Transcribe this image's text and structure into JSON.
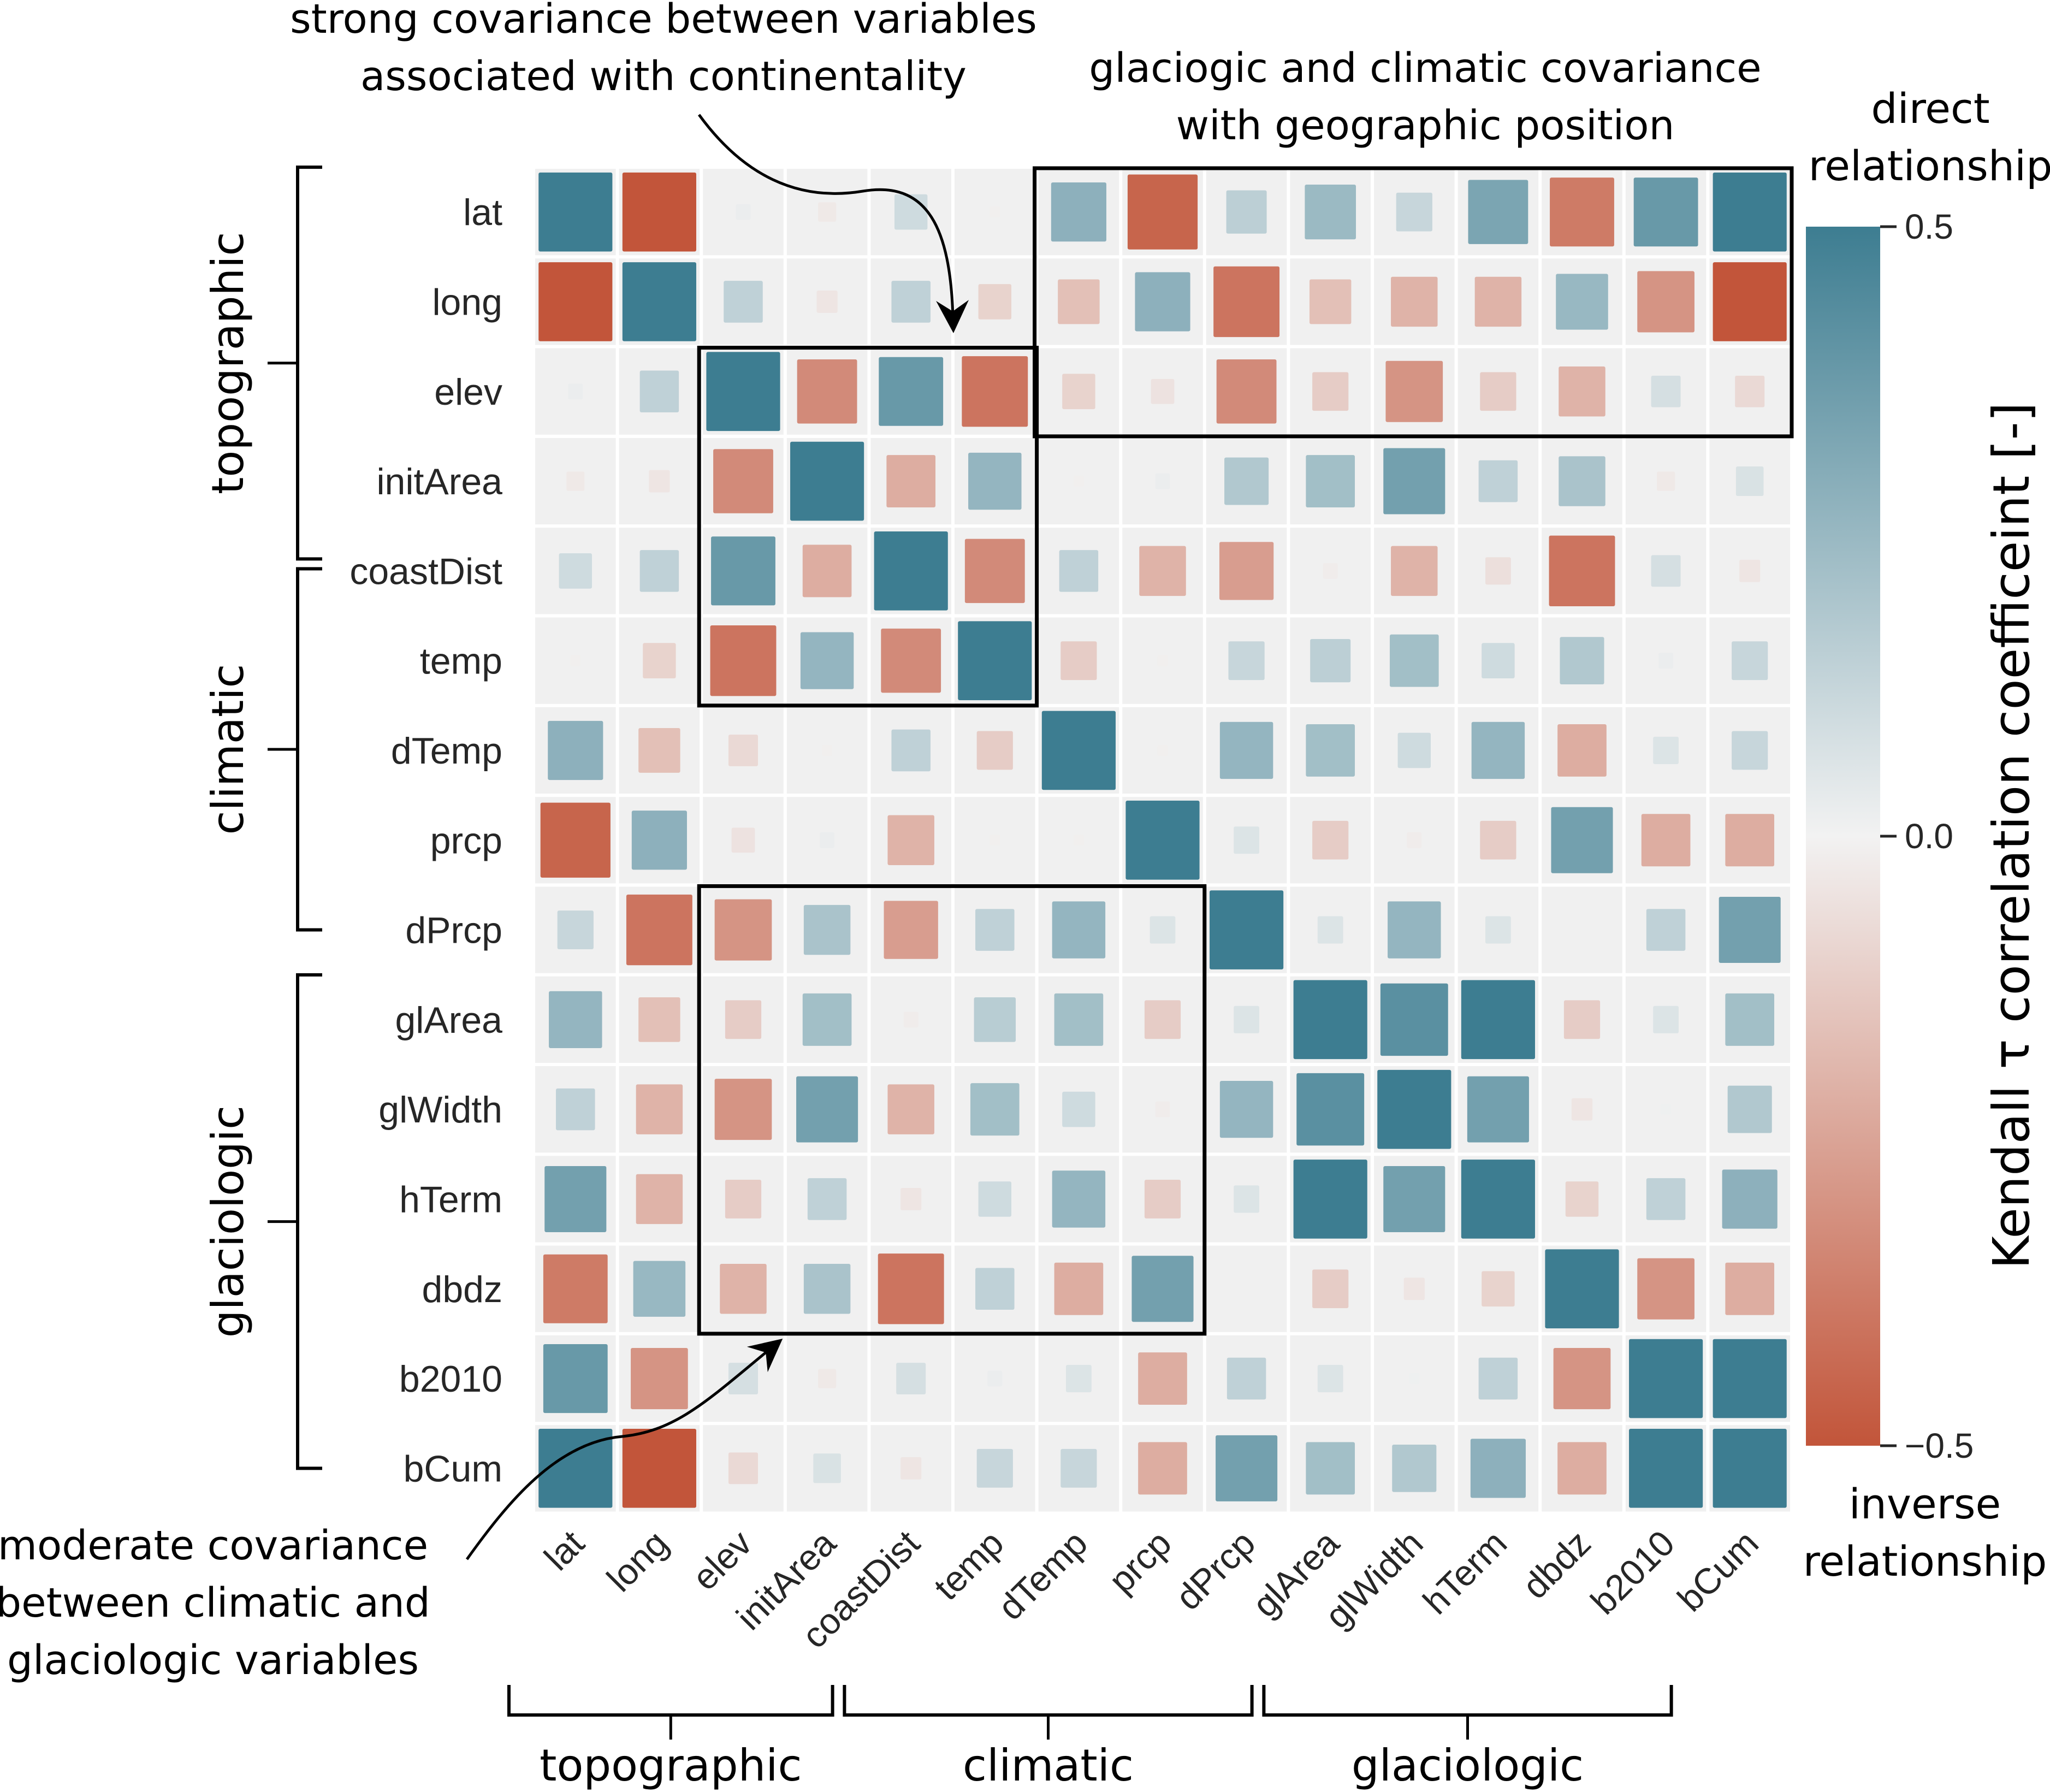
{
  "chart_data": {
    "type": "heatmap",
    "subtype": "correlation-matrix-sized-squares",
    "variables": [
      "lat",
      "long",
      "elev",
      "initArea",
      "coastDist",
      "temp",
      "dTemp",
      "prcp",
      "dPrcp",
      "glArea",
      "glWidth",
      "hTerm",
      "dbdz",
      "b2010",
      "bCum"
    ],
    "row_labels": [
      "lat",
      "long",
      "elev",
      "initArea",
      "coastDist",
      "temp",
      "dTemp",
      "prcp",
      "dPrcp",
      "glArea",
      "glWidth",
      "hTerm",
      "dbdz",
      "b2010",
      "bCum"
    ],
    "col_labels": [
      "lat",
      "long",
      "elev",
      "initArea",
      "coastDist",
      "temp",
      "dTemp",
      "prcp",
      "dPrcp",
      "glArea",
      "glWidth",
      "hTerm",
      "dbdz",
      "b2010",
      "bCum"
    ],
    "values": [
      [
        0.5,
        -0.5,
        0.02,
        -0.03,
        0.1,
        -0.01,
        0.28,
        -0.45,
        0.15,
        0.24,
        0.12,
        0.33,
        -0.38,
        0.38,
        0.5
      ],
      [
        -0.5,
        0.5,
        0.14,
        -0.04,
        0.14,
        -0.1,
        -0.16,
        0.28,
        -0.4,
        -0.16,
        -0.2,
        -0.2,
        0.25,
        -0.3,
        -0.5
      ],
      [
        0.02,
        0.14,
        0.5,
        -0.33,
        0.38,
        -0.4,
        -0.1,
        -0.05,
        -0.33,
        -0.12,
        -0.3,
        -0.12,
        -0.2,
        0.08,
        -0.08
      ],
      [
        -0.03,
        -0.04,
        -0.33,
        0.5,
        -0.22,
        0.26,
        -0.01,
        0.02,
        0.18,
        0.22,
        0.35,
        0.14,
        0.2,
        -0.03,
        0.07
      ],
      [
        0.1,
        0.14,
        0.38,
        -0.22,
        0.5,
        -0.33,
        0.14,
        -0.2,
        -0.27,
        -0.02,
        -0.2,
        -0.06,
        -0.4,
        0.08,
        -0.04
      ],
      [
        -0.01,
        -0.1,
        -0.4,
        0.26,
        -0.33,
        0.5,
        -0.12,
        -0.01,
        0.12,
        0.15,
        0.22,
        0.1,
        0.18,
        0.02,
        0.12
      ],
      [
        0.28,
        -0.16,
        -0.08,
        -0.01,
        0.14,
        -0.12,
        0.5,
        -0.01,
        0.26,
        0.22,
        0.1,
        0.26,
        -0.22,
        0.06,
        0.12
      ],
      [
        -0.45,
        0.28,
        -0.05,
        0.02,
        -0.2,
        -0.01,
        -0.01,
        0.5,
        0.06,
        -0.12,
        -0.02,
        -0.12,
        0.35,
        -0.22,
        -0.22
      ],
      [
        0.12,
        -0.4,
        -0.3,
        0.2,
        -0.27,
        0.14,
        0.26,
        0.06,
        0.5,
        0.06,
        0.26,
        0.06,
        0.0,
        0.14,
        0.35
      ],
      [
        0.26,
        -0.16,
        -0.12,
        0.22,
        -0.02,
        0.16,
        0.22,
        -0.12,
        0.06,
        0.5,
        0.42,
        0.5,
        -0.12,
        0.06,
        0.22
      ],
      [
        0.14,
        -0.2,
        -0.3,
        0.35,
        -0.2,
        0.22,
        0.1,
        -0.02,
        0.26,
        0.42,
        0.5,
        0.35,
        -0.04,
        0.01,
        0.18
      ],
      [
        0.35,
        -0.2,
        -0.12,
        0.14,
        -0.04,
        0.1,
        0.26,
        -0.12,
        0.06,
        0.5,
        0.35,
        0.5,
        -0.1,
        0.14,
        0.28
      ],
      [
        -0.38,
        0.25,
        -0.2,
        0.2,
        -0.4,
        0.14,
        -0.22,
        0.35,
        0.0,
        -0.12,
        -0.04,
        -0.1,
        0.5,
        -0.3,
        -0.22
      ],
      [
        0.38,
        -0.3,
        0.08,
        -0.03,
        0.08,
        0.02,
        0.06,
        -0.22,
        0.14,
        0.06,
        0.01,
        0.14,
        -0.3,
        0.5,
        0.5
      ],
      [
        0.5,
        -0.5,
        -0.08,
        0.07,
        -0.04,
        0.12,
        0.12,
        -0.22,
        0.35,
        0.22,
        0.18,
        0.28,
        -0.22,
        0.5,
        0.5
      ]
    ],
    "value_range": [
      -0.5,
      0.5
    ],
    "colorbar": {
      "label": "Kendall τ correlation coefficeint [-]",
      "ticks": [
        0.5,
        0.0,
        -0.5
      ],
      "tick_labels": [
        "0.5",
        "0.0",
        "−0.5"
      ],
      "top_caption": [
        "direct",
        "relationship"
      ],
      "bottom_caption": [
        "inverse",
        "relationship"
      ],
      "colors": {
        "positive": "#3d7d91",
        "zero": "#f2f2f2",
        "negative": "#c2553a"
      },
      "placement": "right"
    },
    "groups": [
      {
        "name": "topographic",
        "members": [
          "lat",
          "long",
          "elev",
          "initArea",
          "coastDist"
        ]
      },
      {
        "name": "climatic",
        "members": [
          "coastDist",
          "temp",
          "dTemp",
          "prcp",
          "dPrcp"
        ]
      },
      {
        "name": "glaciologic",
        "members": [
          "glArea",
          "glWidth",
          "hTerm",
          "dbdz",
          "b2010",
          "bCum"
        ]
      }
    ],
    "x_groups": [
      {
        "name": "topographic",
        "from": "lat",
        "to": "initArea"
      },
      {
        "name": "climatic",
        "from": "coastDist",
        "to": "dPrcp"
      },
      {
        "name": "glaciologic",
        "from": "glArea",
        "to": "bCum"
      }
    ],
    "highlight_boxes": [
      {
        "name": "geographic-position-box",
        "rows": [
          "lat",
          "elev"
        ],
        "cols": [
          "dTemp",
          "bCum"
        ]
      },
      {
        "name": "continentality-box",
        "rows": [
          "elev",
          "temp"
        ],
        "cols": [
          "elev",
          "temp"
        ]
      },
      {
        "name": "climatic-glaciologic-box",
        "rows": [
          "dPrcp",
          "dbdz"
        ],
        "cols": [
          "elev",
          "prcp"
        ]
      }
    ],
    "annotations": [
      {
        "name": "continentality-annotation",
        "lines": [
          "strong covariance between variables",
          "associated with continentality"
        ]
      },
      {
        "name": "geographic-annotation",
        "lines": [
          "glaciogic and climatic covariance",
          "with geographic position"
        ]
      },
      {
        "name": "moderate-annotation",
        "lines": [
          "moderate covariance",
          "between climatic and",
          "glaciologic variables"
        ]
      }
    ],
    "grid": true,
    "legend": "right"
  }
}
